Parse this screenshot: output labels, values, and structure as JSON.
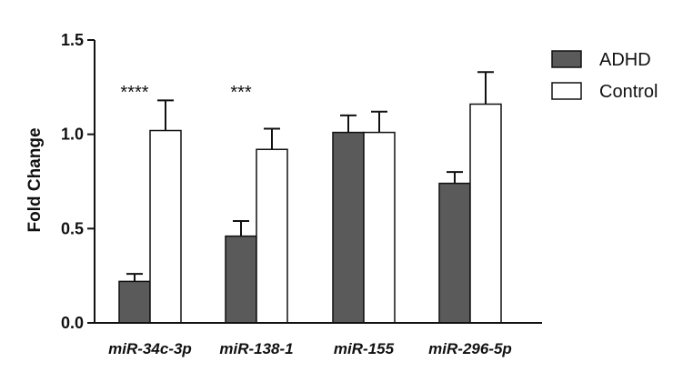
{
  "chart_data": {
    "type": "bar",
    "title": "",
    "xlabel": "",
    "ylabel": "Fold Change",
    "ylim": [
      0,
      1.5
    ],
    "yticks": [
      0.0,
      0.5,
      1.0,
      1.5
    ],
    "ytick_labels": [
      "0.0",
      "0.5",
      "1.0",
      "1.5"
    ],
    "categories": [
      "miR-34c-3p",
      "miR-138-1",
      "miR-155",
      "miR-296-5p"
    ],
    "series": [
      {
        "name": "ADHD",
        "color": "#5a5a5a",
        "values": [
          0.22,
          0.46,
          1.01,
          0.74
        ],
        "errors": [
          0.04,
          0.08,
          0.09,
          0.06
        ]
      },
      {
        "name": "Control",
        "color": "#ffffff",
        "values": [
          1.02,
          0.92,
          1.01,
          1.16
        ],
        "errors": [
          0.16,
          0.11,
          0.11,
          0.17
        ]
      }
    ],
    "significance": [
      "****",
      "***",
      "",
      ""
    ],
    "legend": {
      "position": "top-right",
      "entries": [
        "ADHD",
        "Control"
      ]
    },
    "grid": false
  }
}
